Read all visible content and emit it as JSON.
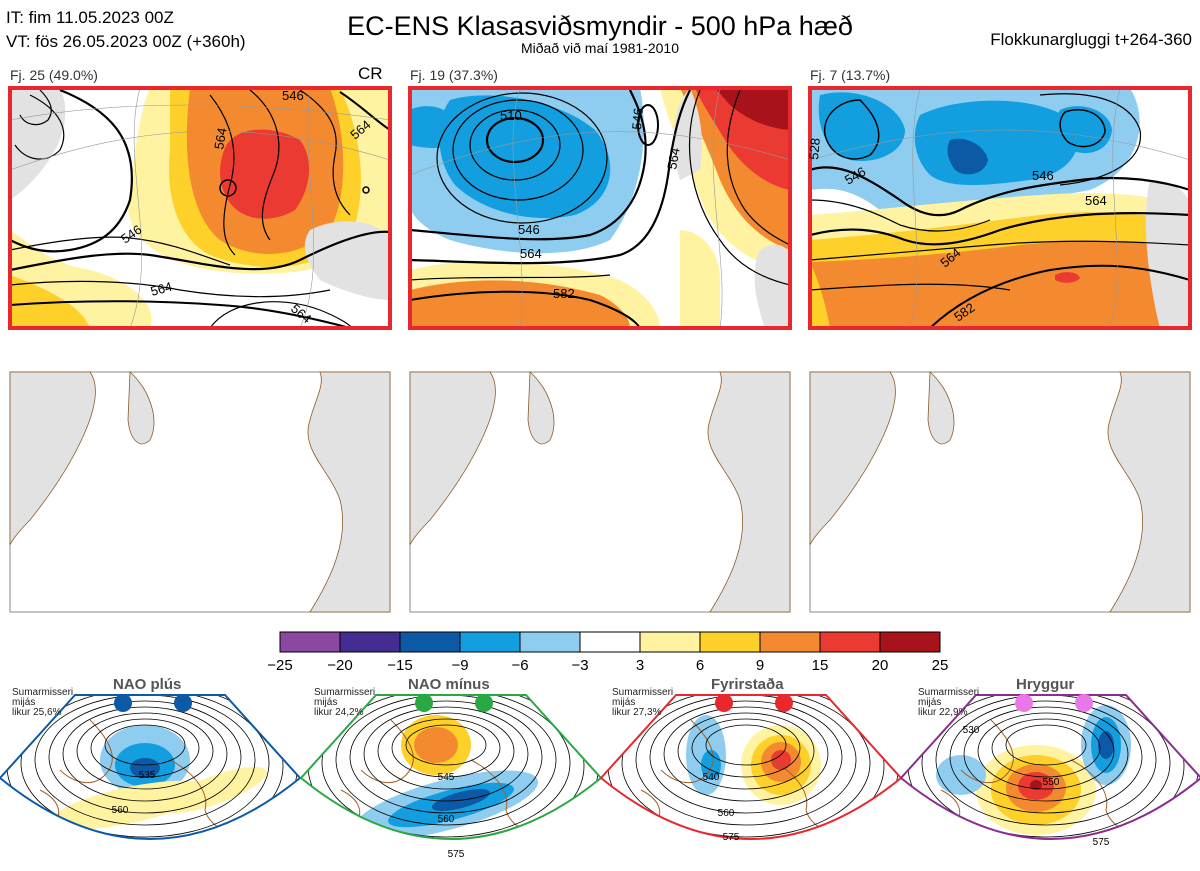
{
  "header": {
    "init_line": "IT: fim 11.05.2023 00Z",
    "valid_line": "VT: fös 26.05.2023 00Z  (+360h)",
    "title": "EC-ENS Klasasviðsmyndir - 500 hPa hæð",
    "subtitle": "Miðað við maí 1981-2010",
    "window": "Flokkunargluggi t+264-360"
  },
  "clusters": [
    {
      "label": "Fj. 25 (49.0%)",
      "tag": "CR",
      "contours": [
        "546",
        "564",
        "564",
        "546",
        "564",
        "564"
      ]
    },
    {
      "label": "Fj. 19 (37.3%)",
      "tag": "",
      "contours": [
        "510",
        "546",
        "546",
        "564",
        "564",
        "582"
      ]
    },
    {
      "label": "Fj. 7 (13.7%)",
      "tag": "",
      "contours": [
        "546",
        "546",
        "564",
        "564",
        "582",
        "528"
      ]
    }
  ],
  "colorbar": {
    "ticks": [
      "−25",
      "−20",
      "−15",
      "−9",
      "−6",
      "−3",
      "3",
      "6",
      "9",
      "15",
      "20",
      "25"
    ],
    "colors": [
      "#8b48a0",
      "#442d90",
      "#0c5aa6",
      "#139fdf",
      "#8ecdf0",
      "#ffffff",
      "#fff2a0",
      "#fdd02a",
      "#f48a30",
      "#ea3a32",
      "#a8121a"
    ]
  },
  "regimes": [
    {
      "title": "NAO plús",
      "note": [
        "Sumarmisseri",
        "mijás",
        "likur 25,6%"
      ],
      "border": "#0c5aa6",
      "dots": "#0c5aa6",
      "contours": [
        "535",
        "560"
      ]
    },
    {
      "title": "NAO mínus",
      "note": [
        "Sumarmisseri",
        "mijás",
        "likur 24,2%"
      ],
      "border": "#2aa844",
      "dots": "#2aa844",
      "contours": [
        "545",
        "560",
        "575"
      ]
    },
    {
      "title": "Fyrirstaða",
      "note": [
        "Sumarmisseri",
        "mijás",
        "likur 27,3%"
      ],
      "border": "#e8282c",
      "dots": "#e8282c",
      "contours": [
        "540",
        "560",
        "575"
      ]
    },
    {
      "title": "Hryggur",
      "note": [
        "Sumarmisseri",
        "mijás",
        "likur 22,9%"
      ],
      "border": "#8a2d8f",
      "dots": "#e878e8",
      "contours": [
        "530",
        "550",
        "575"
      ]
    }
  ]
}
